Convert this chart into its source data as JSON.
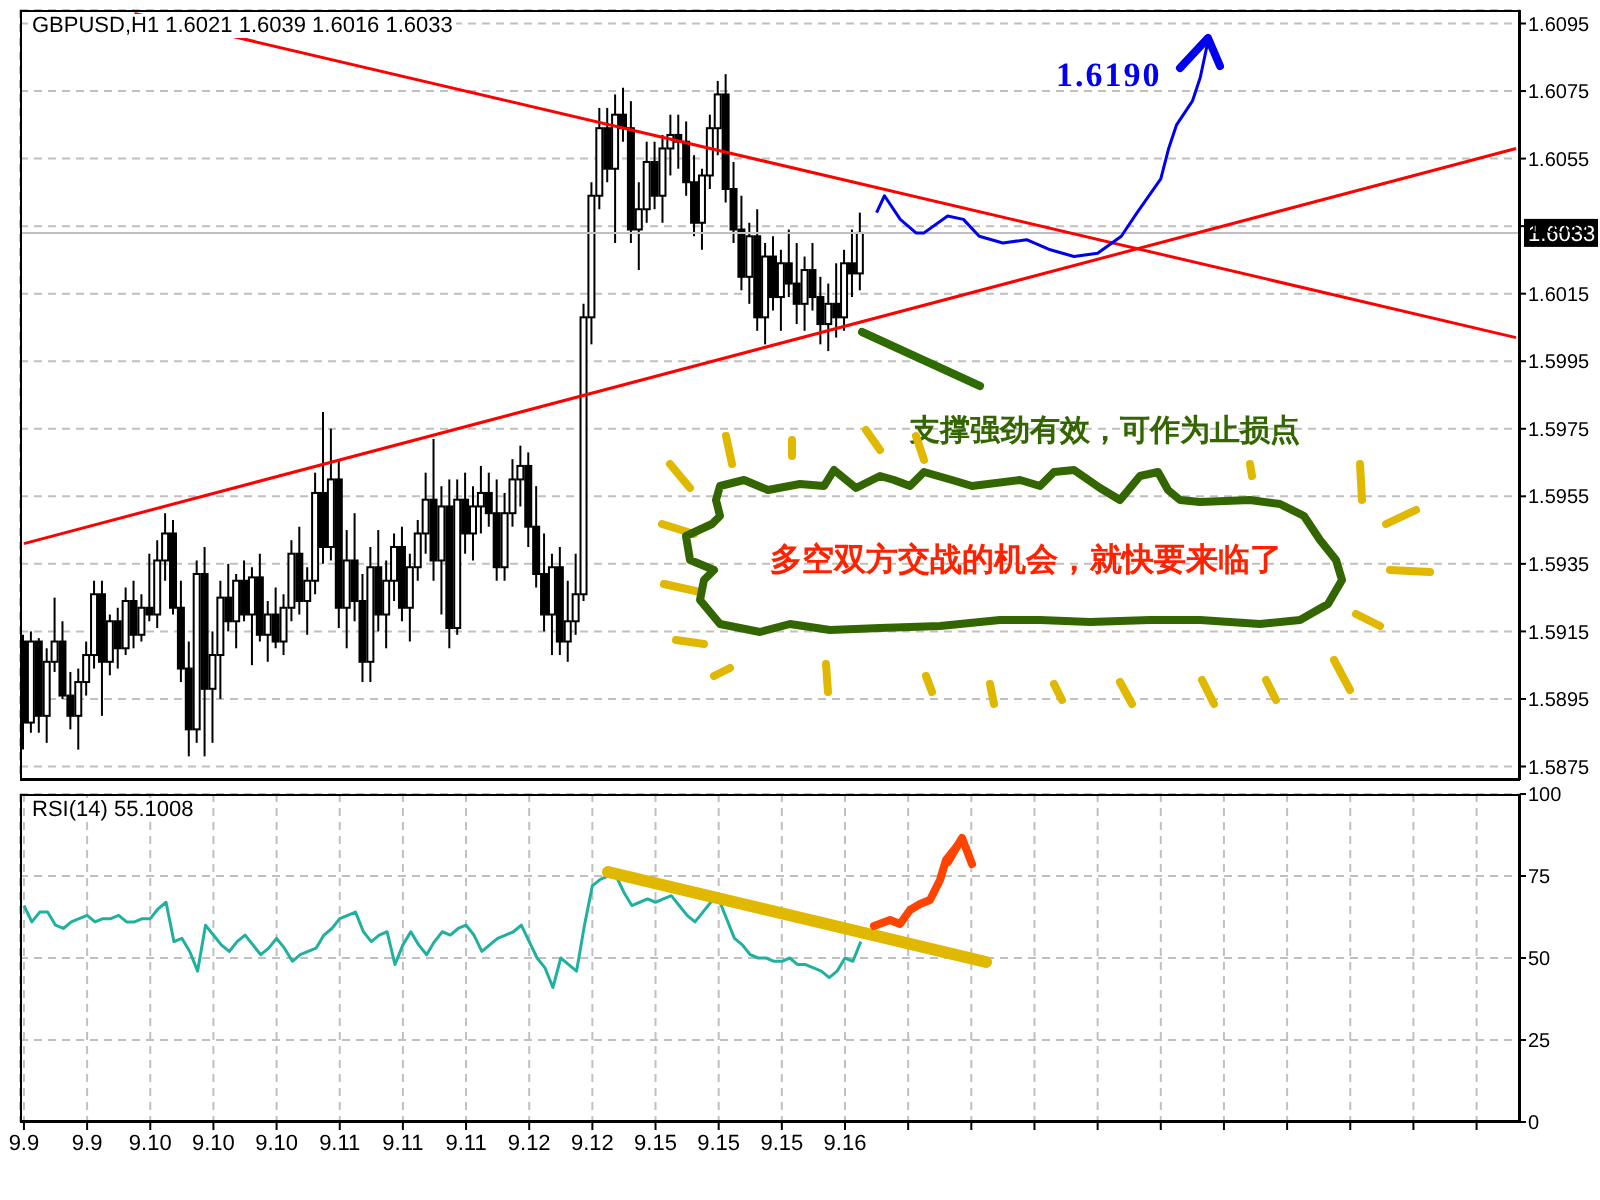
{
  "chart_data": [
    {
      "type": "candlestick",
      "title": "GBPUSD,H1 1.6021 1.6039 1.6016 1.6033",
      "color": "#000000",
      "grid": true,
      "tick_labels": "y",
      "ylim": [
        1.5871,
        1.6099
      ],
      "yticks": [
        1.5875,
        1.5895,
        1.5915,
        1.5935,
        1.5955,
        1.5975,
        1.5995,
        1.6015,
        1.6035,
        1.6055,
        1.6075,
        1.6095
      ],
      "categories": [
        "9.9",
        null,
        null,
        null,
        null,
        null,
        null,
        null,
        "9.9",
        null,
        null,
        null,
        null,
        null,
        null,
        null,
        "9.10",
        null,
        null,
        null,
        null,
        null,
        null,
        null,
        "9.10",
        null,
        null,
        null,
        null,
        null,
        null,
        null,
        "9.10",
        null,
        null,
        null,
        null,
        null,
        null,
        null,
        "9.11",
        null,
        null,
        null,
        null,
        null,
        null,
        null,
        "9.11",
        null,
        null,
        null,
        null,
        null,
        null,
        null,
        "9.11",
        null,
        null,
        null,
        null,
        null,
        null,
        null,
        "9.12",
        null,
        null,
        null,
        null,
        null,
        null,
        null,
        "9.12",
        null,
        null,
        null,
        null,
        null,
        null,
        null,
        "9.15",
        null,
        null,
        null,
        null,
        null,
        null,
        null,
        "9.15",
        null,
        null,
        null,
        null,
        null,
        null,
        null,
        "9.15",
        null,
        null,
        null,
        null,
        null,
        null,
        null,
        "9.16",
        null,
        null,
        null,
        null,
        null,
        null,
        null,
        null,
        null,
        null,
        null,
        null,
        null,
        null,
        null,
        null,
        null,
        null,
        null,
        null,
        null,
        null,
        null,
        null,
        null,
        null,
        null,
        null,
        null,
        null,
        null,
        null,
        null,
        null,
        null,
        null,
        null,
        null,
        null,
        null,
        null,
        null,
        null,
        null,
        null,
        null,
        null,
        null,
        null,
        null,
        null,
        null,
        null,
        null,
        null,
        null,
        null,
        null,
        null,
        null,
        null,
        null,
        null,
        null,
        null,
        null,
        null,
        null,
        null,
        null,
        null,
        null,
        null,
        null,
        null,
        null,
        null,
        null,
        null,
        null,
        null,
        null,
        null,
        null,
        null
      ],
      "ohlc": [
        [
          1.5912,
          1.5914,
          1.588,
          1.5888
        ],
        [
          1.5888,
          1.5915,
          1.5885,
          1.5912
        ],
        [
          1.5912,
          1.5913,
          1.5885,
          1.589
        ],
        [
          1.589,
          1.591,
          1.5882,
          1.5906
        ],
        [
          1.5906,
          1.5925,
          1.5903,
          1.5912
        ],
        [
          1.5912,
          1.5918,
          1.5895,
          1.5896
        ],
        [
          1.5896,
          1.5903,
          1.5886,
          1.589
        ],
        [
          1.589,
          1.5904,
          1.588,
          1.59
        ],
        [
          1.59,
          1.5912,
          1.5896,
          1.5908
        ],
        [
          1.5908,
          1.593,
          1.5904,
          1.5926
        ],
        [
          1.5926,
          1.593,
          1.589,
          1.5906
        ],
        [
          1.5906,
          1.592,
          1.5902,
          1.5918
        ],
        [
          1.5918,
          1.5922,
          1.5904,
          1.591
        ],
        [
          1.591,
          1.5928,
          1.5908,
          1.5924
        ],
        [
          1.5924,
          1.593,
          1.591,
          1.5914
        ],
        [
          1.5914,
          1.5926,
          1.5912,
          1.5922
        ],
        [
          1.5922,
          1.5938,
          1.5918,
          1.592
        ],
        [
          1.592,
          1.5942,
          1.5916,
          1.5936
        ],
        [
          1.5936,
          1.595,
          1.593,
          1.5944
        ],
        [
          1.5944,
          1.5948,
          1.592,
          1.5922
        ],
        [
          1.5922,
          1.593,
          1.59,
          1.5904
        ],
        [
          1.5904,
          1.5912,
          1.5878,
          1.5886
        ],
        [
          1.5886,
          1.5936,
          1.5882,
          1.5932
        ],
        [
          1.5932,
          1.594,
          1.5878,
          1.5898
        ],
        [
          1.5898,
          1.5915,
          1.5882,
          1.5908
        ],
        [
          1.5908,
          1.593,
          1.5895,
          1.5925
        ],
        [
          1.5925,
          1.5935,
          1.5915,
          1.5918
        ],
        [
          1.5918,
          1.5932,
          1.591,
          1.593
        ],
        [
          1.593,
          1.5936,
          1.5918,
          1.592
        ],
        [
          1.592,
          1.5934,
          1.5905,
          1.5931
        ],
        [
          1.5931,
          1.5938,
          1.5912,
          1.5914
        ],
        [
          1.5914,
          1.5924,
          1.5906,
          1.592
        ],
        [
          1.592,
          1.5928,
          1.591,
          1.5912
        ],
        [
          1.5912,
          1.5926,
          1.5908,
          1.5922
        ],
        [
          1.5922,
          1.5942,
          1.5918,
          1.5938
        ],
        [
          1.5938,
          1.5946,
          1.592,
          1.5924
        ],
        [
          1.5924,
          1.5934,
          1.5914,
          1.593
        ],
        [
          1.593,
          1.5962,
          1.5926,
          1.5956
        ],
        [
          1.5956,
          1.598,
          1.5935,
          1.594
        ],
        [
          1.594,
          1.5975,
          1.5936,
          1.596
        ],
        [
          1.596,
          1.5966,
          1.5916,
          1.5922
        ],
        [
          1.5922,
          1.5945,
          1.591,
          1.5936
        ],
        [
          1.5936,
          1.595,
          1.5918,
          1.5924
        ],
        [
          1.5924,
          1.5932,
          1.59,
          1.5906
        ],
        [
          1.5906,
          1.594,
          1.59,
          1.5934
        ],
        [
          1.5934,
          1.5945,
          1.5915,
          1.592
        ],
        [
          1.592,
          1.5936,
          1.591,
          1.593
        ],
        [
          1.593,
          1.5944,
          1.5924,
          1.594
        ],
        [
          1.594,
          1.5946,
          1.5918,
          1.5922
        ],
        [
          1.5922,
          1.5938,
          1.5912,
          1.5934
        ],
        [
          1.5934,
          1.5948,
          1.593,
          1.5944
        ],
        [
          1.5944,
          1.5962,
          1.5938,
          1.5954
        ],
        [
          1.5954,
          1.5972,
          1.593,
          1.5936
        ],
        [
          1.5936,
          1.5958,
          1.592,
          1.5952
        ],
        [
          1.5952,
          1.596,
          1.591,
          1.5916
        ],
        [
          1.5916,
          1.596,
          1.5914,
          1.5954
        ],
        [
          1.5954,
          1.5962,
          1.5938,
          1.5944
        ],
        [
          1.5944,
          1.5958,
          1.5936,
          1.5952
        ],
        [
          1.5952,
          1.5964,
          1.5944,
          1.5956
        ],
        [
          1.5956,
          1.5962,
          1.5946,
          1.595
        ],
        [
          1.595,
          1.596,
          1.593,
          1.5934
        ],
        [
          1.5934,
          1.5956,
          1.593,
          1.595
        ],
        [
          1.595,
          1.5966,
          1.5946,
          1.596
        ],
        [
          1.596,
          1.597,
          1.5952,
          1.5964
        ],
        [
          1.5964,
          1.5968,
          1.594,
          1.5946
        ],
        [
          1.5946,
          1.5958,
          1.5928,
          1.5932
        ],
        [
          1.5932,
          1.5944,
          1.5915,
          1.592
        ],
        [
          1.592,
          1.5938,
          1.5908,
          1.5934
        ],
        [
          1.5934,
          1.594,
          1.5908,
          1.5912
        ],
        [
          1.5912,
          1.593,
          1.5906,
          1.5918
        ],
        [
          1.5918,
          1.5938,
          1.5914,
          1.5926
        ],
        [
          1.5926,
          1.6012,
          1.5924,
          1.6008
        ],
        [
          1.6008,
          1.6048,
          1.6,
          1.6044
        ],
        [
          1.6044,
          1.607,
          1.604,
          1.6064
        ],
        [
          1.6064,
          1.607,
          1.6048,
          1.6052
        ],
        [
          1.6052,
          1.6074,
          1.603,
          1.6068
        ],
        [
          1.6068,
          1.6076,
          1.606,
          1.6064
        ],
        [
          1.6064,
          1.6072,
          1.603,
          1.6034
        ],
        [
          1.6034,
          1.6048,
          1.6022,
          1.604
        ],
        [
          1.604,
          1.606,
          1.6036,
          1.6054
        ],
        [
          1.6054,
          1.606,
          1.604,
          1.6044
        ],
        [
          1.6044,
          1.6062,
          1.6036,
          1.6058
        ],
        [
          1.6058,
          1.6068,
          1.605,
          1.6062
        ],
        [
          1.6062,
          1.6068,
          1.6052,
          1.606
        ],
        [
          1.606,
          1.6066,
          1.6044,
          1.6048
        ],
        [
          1.6048,
          1.6056,
          1.6032,
          1.6036
        ],
        [
          1.6036,
          1.6052,
          1.6028,
          1.605
        ],
        [
          1.605,
          1.6068,
          1.6046,
          1.6064
        ],
        [
          1.6064,
          1.6078,
          1.6056,
          1.6074
        ],
        [
          1.6074,
          1.608,
          1.6042,
          1.6046
        ],
        [
          1.6046,
          1.6054,
          1.603,
          1.6034
        ],
        [
          1.6034,
          1.6044,
          1.6016,
          1.602
        ],
        [
          1.602,
          1.6036,
          1.6012,
          1.6032
        ],
        [
          1.6032,
          1.604,
          1.6004,
          1.6008
        ],
        [
          1.6008,
          1.603,
          1.6,
          1.6026
        ],
        [
          1.6026,
          1.6032,
          1.601,
          1.6014
        ],
        [
          1.6014,
          1.6028,
          1.6004,
          1.6024
        ],
        [
          1.6024,
          1.6034,
          1.6014,
          1.6018
        ],
        [
          1.6018,
          1.603,
          1.6006,
          1.6012
        ],
        [
          1.6012,
          1.6026,
          1.6004,
          1.6022
        ],
        [
          1.6022,
          1.603,
          1.601,
          1.6014
        ],
        [
          1.6014,
          1.602,
          1.6,
          1.6006
        ],
        [
          1.6006,
          1.6018,
          1.5998,
          1.6012
        ],
        [
          1.6012,
          1.6024,
          1.6002,
          1.6008
        ],
        [
          1.6008,
          1.6028,
          1.6004,
          1.6024
        ],
        [
          1.6024,
          1.6034,
          1.6014,
          1.6021
        ],
        [
          1.6021,
          1.6039,
          1.6016,
          1.6033
        ],
        null,
        null,
        null,
        null,
        null,
        null,
        null,
        null,
        null,
        null,
        null,
        null,
        null,
        null,
        null,
        null,
        null,
        null,
        null,
        null,
        null,
        null,
        null,
        null,
        null,
        null,
        null,
        null,
        null,
        null,
        null,
        null,
        null,
        null,
        null,
        null,
        null,
        null,
        null,
        null,
        null,
        null,
        null,
        null,
        null,
        null,
        null,
        null,
        null,
        null,
        null,
        null,
        null,
        null,
        null,
        null,
        null,
        null,
        null,
        null,
        null,
        null,
        null,
        null,
        null,
        null,
        null,
        null,
        null,
        null,
        null,
        null,
        null,
        null,
        null,
        null,
        null,
        null,
        null,
        null,
        null,
        null,
        null
      ],
      "series": [
        {
          "type": "line",
          "color": "#ff0000",
          "values": [
            null,
            null,
            null,
            null,
            null,
            null,
            null,
            null,
            null,
            null,
            null,
            null,
            null,
            null,
            1.6098,
            null,
            null,
            null,
            null,
            null,
            null,
            null,
            null,
            null,
            null,
            null,
            null,
            null,
            null,
            null,
            null,
            null,
            null,
            null,
            null,
            null,
            null,
            null,
            null,
            null,
            null,
            null,
            null,
            null,
            null,
            null,
            null,
            null,
            null,
            null,
            null,
            null,
            null,
            null,
            null,
            null,
            null,
            null,
            null,
            null,
            null,
            null,
            null,
            null,
            null,
            null,
            null,
            null,
            null,
            null,
            null,
            null,
            null,
            null,
            null,
            null,
            null,
            null,
            null,
            null,
            null,
            null,
            null,
            null,
            null,
            null,
            null,
            null,
            null,
            null,
            null,
            null,
            null,
            null,
            null,
            null,
            null,
            null,
            null,
            null,
            null,
            null,
            null,
            null,
            null,
            null,
            null,
            null,
            null,
            null,
            null,
            null,
            null,
            null,
            null,
            null,
            null,
            null,
            null,
            null,
            null,
            null,
            null,
            null,
            null,
            null,
            null,
            null,
            null,
            null,
            null,
            null,
            null,
            null,
            null,
            null,
            null,
            null,
            null,
            null,
            null,
            null,
            null,
            null,
            null,
            null,
            null,
            null,
            null,
            null,
            null,
            null,
            null,
            null,
            null,
            null,
            null,
            null,
            null,
            null,
            null,
            null,
            null,
            null,
            null,
            null,
            null,
            null,
            null,
            null,
            null,
            null,
            null,
            null,
            null,
            null,
            null,
            null,
            null,
            null,
            null,
            null,
            null,
            null,
            null,
            null,
            null,
            null,
            null,
            1.6002
          ]
        },
        {
          "type": "line",
          "color": "#ff0000",
          "values": [
            1.5941,
            null,
            null,
            null,
            null,
            null,
            null,
            null,
            null,
            null,
            null,
            null,
            null,
            null,
            null,
            null,
            null,
            null,
            null,
            null,
            null,
            null,
            null,
            null,
            null,
            null,
            null,
            null,
            null,
            null,
            null,
            null,
            null,
            null,
            null,
            null,
            null,
            null,
            null,
            null,
            null,
            null,
            null,
            null,
            null,
            null,
            null,
            null,
            null,
            null,
            null,
            null,
            null,
            null,
            null,
            null,
            null,
            null,
            null,
            null,
            null,
            null,
            null,
            null,
            null,
            null,
            null,
            null,
            null,
            null,
            null,
            null,
            null,
            null,
            null,
            null,
            null,
            null,
            null,
            null,
            null,
            null,
            null,
            null,
            null,
            null,
            null,
            null,
            null,
            null,
            null,
            null,
            null,
            null,
            null,
            null,
            null,
            null,
            null,
            null,
            null,
            null,
            null,
            null,
            null,
            null,
            null,
            null,
            null,
            null,
            null,
            null,
            null,
            null,
            null,
            null,
            null,
            null,
            null,
            null,
            null,
            null,
            null,
            null,
            null,
            null,
            null,
            null,
            null,
            null,
            null,
            null,
            null,
            null,
            null,
            null,
            null,
            null,
            null,
            null,
            null,
            null,
            null,
            null,
            null,
            null,
            null,
            null,
            null,
            null,
            null,
            null,
            null,
            null,
            null,
            null,
            null,
            null,
            null,
            null,
            null,
            null,
            null,
            null,
            null,
            null,
            null,
            null,
            null,
            null,
            null,
            null,
            null,
            null,
            null,
            null,
            null,
            null,
            null,
            null,
            null,
            null,
            null,
            null,
            null,
            null,
            null,
            null,
            null,
            1.6058
          ]
        },
        {
          "type": "line",
          "color": "#0000ee",
          "values": [
            null,
            null,
            null,
            null,
            null,
            null,
            null,
            null,
            null,
            null,
            null,
            null,
            null,
            null,
            null,
            null,
            null,
            null,
            null,
            null,
            null,
            null,
            null,
            null,
            null,
            null,
            null,
            null,
            null,
            null,
            null,
            null,
            null,
            null,
            null,
            null,
            null,
            null,
            null,
            null,
            null,
            null,
            null,
            null,
            null,
            null,
            null,
            null,
            null,
            null,
            null,
            null,
            null,
            null,
            null,
            null,
            null,
            null,
            null,
            null,
            null,
            null,
            null,
            null,
            null,
            null,
            null,
            null,
            null,
            null,
            null,
            null,
            null,
            null,
            null,
            null,
            null,
            null,
            null,
            null,
            null,
            null,
            null,
            null,
            null,
            null,
            null,
            null,
            null,
            null,
            null,
            null,
            null,
            null,
            null,
            null,
            null,
            null,
            null,
            null,
            null,
            null,
            null,
            null,
            null,
            null,
            null,
            null,
            1.6039,
            1.6044,
            null,
            1.6037,
            null,
            1.6033,
            1.6033,
            null,
            null,
            1.6038,
            null,
            1.6037,
            null,
            1.6032,
            null,
            null,
            1.603,
            null,
            null,
            1.6031,
            null,
            null,
            1.6028,
            null,
            null,
            1.6026,
            null,
            null,
            1.6027,
            null,
            null,
            1.6032,
            null,
            1.6039,
            null,
            null,
            1.6049,
            1.6058,
            1.6065,
            null,
            1.6072,
            1.6079,
            1.609,
            null,
            null,
            null,
            null,
            null,
            null,
            null,
            null,
            null,
            null,
            null,
            null,
            null,
            null,
            null,
            null,
            null,
            null,
            null,
            null,
            null,
            null,
            null,
            null,
            null,
            null,
            null,
            null,
            null,
            null,
            null,
            null,
            null,
            null,
            null,
            null,
            null,
            null,
            null
          ]
        }
      ],
      "ref_lines": [
        {
          "axis": "y",
          "value": 1.6033,
          "label": "1.6033",
          "color": "#c0c0c0"
        }
      ],
      "annotations": [
        "1.6190",
        "支撑强劲有效，可作为止损点",
        "多空双方交战的机会，就快要来临了"
      ]
    },
    {
      "type": "line",
      "title": "RSI(14) 55.1008",
      "grid": true,
      "ylim": [
        0,
        100
      ],
      "yticks": [
        0,
        25,
        50,
        75,
        100
      ],
      "categories": [
        "9.9",
        null,
        null,
        null,
        null,
        null,
        null,
        null,
        "9.9",
        null,
        null,
        null,
        null,
        null,
        null,
        null,
        "9.10",
        null,
        null,
        null,
        null,
        null,
        null,
        null,
        "9.10",
        null,
        null,
        null,
        null,
        null,
        null,
        null,
        "9.10",
        null,
        null,
        null,
        null,
        null,
        null,
        null,
        "9.11",
        null,
        null,
        null,
        null,
        null,
        null,
        null,
        "9.11",
        null,
        null,
        null,
        null,
        null,
        null,
        null,
        "9.11",
        null,
        null,
        null,
        null,
        null,
        null,
        null,
        "9.12",
        null,
        null,
        null,
        null,
        null,
        null,
        null,
        "9.12",
        null,
        null,
        null,
        null,
        null,
        null,
        null,
        "9.15",
        null,
        null,
        null,
        null,
        null,
        null,
        null,
        "9.15",
        null,
        null,
        null,
        null,
        null,
        null,
        null,
        "9.15",
        null,
        null,
        null,
        null,
        null,
        null,
        null,
        "9.16",
        null,
        null,
        null,
        null,
        null,
        null,
        null,
        null,
        null,
        null,
        null,
        null,
        null,
        null,
        null,
        null,
        null,
        null,
        null,
        null,
        null,
        null,
        null,
        null,
        null,
        null,
        null,
        null,
        null,
        null,
        null,
        null,
        null,
        null,
        null,
        null,
        null,
        null,
        null,
        null,
        null,
        null,
        null,
        null,
        null,
        null,
        null,
        null,
        null,
        null,
        null,
        null,
        null,
        null,
        null,
        null,
        null,
        null,
        null,
        null,
        null,
        null,
        null,
        null,
        null,
        null,
        null,
        null,
        null,
        null,
        null,
        null,
        null,
        null,
        null,
        null,
        null,
        null,
        null,
        null,
        null,
        null,
        null,
        null,
        null
      ],
      "series": [
        {
          "color": "#20b0a0",
          "values": [
            66,
            61,
            64,
            64,
            60,
            59,
            61,
            62,
            63,
            61,
            62,
            62,
            63,
            61,
            61,
            62,
            62,
            65,
            67,
            55,
            56,
            52,
            46,
            60,
            57,
            54,
            52,
            55,
            57,
            54,
            51,
            53,
            56,
            53,
            49,
            51,
            52,
            53,
            57,
            59,
            62,
            63,
            64,
            58,
            55,
            57,
            58,
            48,
            54,
            58,
            54,
            51,
            55,
            58,
            57,
            59,
            60,
            57,
            52,
            54,
            56,
            57,
            58,
            60,
            55,
            50,
            47,
            41,
            50,
            48,
            46,
            60,
            72,
            74,
            75,
            75,
            70,
            66,
            67,
            68,
            67,
            68,
            69,
            66,
            63,
            61,
            64,
            67,
            68,
            null,
            56,
            54,
            51,
            50,
            50,
            49,
            49,
            50,
            48,
            48,
            47,
            46,
            44,
            46,
            50,
            49,
            55,
            null,
            null,
            null,
            null,
            null,
            null,
            null,
            null,
            null,
            null,
            null,
            null,
            null,
            null,
            null,
            null,
            null,
            null,
            null,
            null,
            null,
            null,
            null,
            null,
            null,
            null,
            null,
            null,
            null,
            null,
            null,
            null,
            null,
            null,
            null,
            null,
            null,
            null,
            null,
            null,
            null,
            null,
            null,
            null,
            null,
            null,
            null,
            null,
            null,
            null,
            null,
            null,
            null,
            null,
            null,
            null,
            null,
            null,
            null,
            null,
            null,
            null,
            null,
            null,
            null,
            null,
            null,
            null,
            null,
            null,
            null,
            null,
            null,
            null,
            null,
            null,
            null,
            null,
            null,
            null,
            null,
            null,
            null
          ]
        }
      ]
    }
  ]
}
